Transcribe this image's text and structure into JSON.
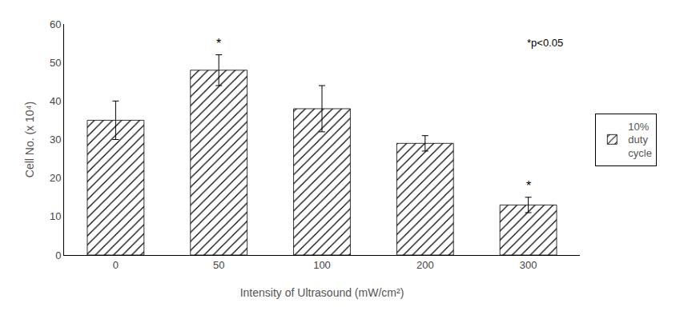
{
  "chart_data": {
    "type": "bar",
    "xlabel": "Intensity of Ultrasound (mW/cm²)",
    "ylabel": "Cell No. (x 10⁴)",
    "categories": [
      "0",
      "50",
      "100",
      "200",
      "300"
    ],
    "series": [
      {
        "name": "10%\nduty\ncycle",
        "color": "white",
        "values": [
          35,
          48,
          38,
          29,
          13
        ],
        "errors": [
          5,
          4,
          6,
          2,
          2
        ]
      }
    ],
    "ylim": [
      0,
      60
    ],
    "yticks": [
      0,
      10,
      20,
      30,
      40,
      50,
      60
    ],
    "annotations": [
      {
        "text": "*p<0.05"
      },
      {
        "text": "*",
        "category": "50"
      },
      {
        "text": "*",
        "category": "300"
      }
    ],
    "grid": false,
    "legend": "right"
  }
}
